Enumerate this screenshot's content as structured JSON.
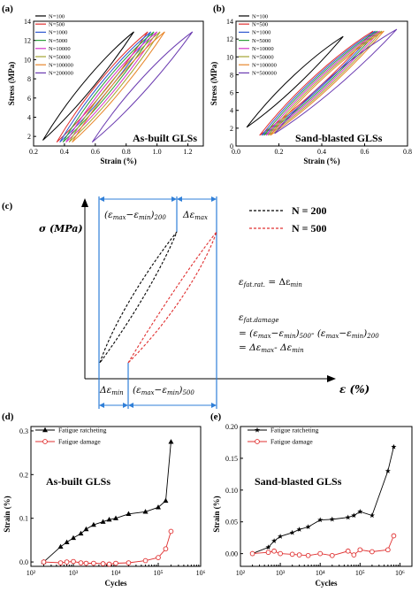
{
  "chart_data": [
    {
      "id": "a",
      "panel_label": "(a)",
      "type": "line",
      "annotation": "As-built GLSs",
      "xlabel": "Strain (%)",
      "ylabel": "Stress (MPa)",
      "xlim": [
        0.2,
        1.3
      ],
      "ylim": [
        1,
        14
      ],
      "xticks": [
        0.2,
        0.4,
        0.6,
        0.8,
        1.0,
        1.2
      ],
      "xtick_labels": [
        "0.2",
        "0.4",
        "0.6",
        "0.8",
        "1.0",
        "1.2"
      ],
      "yticks": [
        2,
        4,
        6,
        8,
        10,
        12,
        14
      ],
      "ytick_labels": [
        "2",
        "4",
        "6",
        "8",
        "10",
        "12",
        "14"
      ],
      "grid": false,
      "legend_position": "top-left",
      "series": [
        {
          "name": "N=100",
          "color": "#000000",
          "loop": {
            "x_start": 0.26,
            "x_end": 0.85,
            "y_min": 1.6,
            "y_max": 12.9
          }
        },
        {
          "name": "N=500",
          "color": "#e03030",
          "loop": {
            "x_start": 0.35,
            "x_end": 0.94,
            "y_min": 1.4,
            "y_max": 12.9
          }
        },
        {
          "name": "N=1000",
          "color": "#2f58d0",
          "loop": {
            "x_start": 0.37,
            "x_end": 0.96,
            "y_min": 1.4,
            "y_max": 12.9
          }
        },
        {
          "name": "N=5000",
          "color": "#2e9e3a",
          "loop": {
            "x_start": 0.39,
            "x_end": 0.98,
            "y_min": 1.4,
            "y_max": 12.9
          }
        },
        {
          "name": "N=10000",
          "color": "#d233c8",
          "loop": {
            "x_start": 0.41,
            "x_end": 1.0,
            "y_min": 1.4,
            "y_max": 12.9
          }
        },
        {
          "name": "N=50000",
          "color": "#a4a432",
          "loop": {
            "x_start": 0.43,
            "x_end": 1.02,
            "y_min": 1.4,
            "y_max": 12.9
          }
        },
        {
          "name": "N=100000",
          "color": "#e8862a",
          "loop": {
            "x_start": 0.45,
            "x_end": 1.05,
            "y_min": 1.4,
            "y_max": 12.9
          }
        },
        {
          "name": "N=200000",
          "color": "#6a3ab0",
          "loop": {
            "x_start": 0.58,
            "x_end": 1.23,
            "y_min": 1.4,
            "y_max": 12.9
          }
        }
      ]
    },
    {
      "id": "b",
      "panel_label": "(b)",
      "type": "line",
      "annotation": "Sand-blasted GLSs",
      "xlabel": "Strain (%)",
      "ylabel": "Stress (MPa)",
      "xlim": [
        0.0,
        0.8
      ],
      "ylim": [
        0,
        14
      ],
      "xticks": [
        0.0,
        0.2,
        0.4,
        0.6,
        0.8
      ],
      "xtick_labels": [
        "0.0",
        "0.2",
        "0.4",
        "0.6",
        "0.8"
      ],
      "yticks": [
        0,
        2,
        4,
        6,
        8,
        10,
        12,
        14
      ],
      "ytick_labels": [
        "0",
        "2",
        "4",
        "6",
        "8",
        "10",
        "12",
        "14"
      ],
      "grid": false,
      "legend_position": "top-left",
      "series": [
        {
          "name": "N=100",
          "color": "#000000",
          "loop": {
            "x_start": 0.05,
            "x_end": 0.5,
            "y_min": 2.1,
            "y_max": 12.3
          }
        },
        {
          "name": "N=500",
          "color": "#e03030",
          "loop": {
            "x_start": 0.11,
            "x_end": 0.64,
            "y_min": 1.2,
            "y_max": 12.9
          }
        },
        {
          "name": "N=1000",
          "color": "#2f58d0",
          "loop": {
            "x_start": 0.12,
            "x_end": 0.65,
            "y_min": 1.2,
            "y_max": 12.9
          }
        },
        {
          "name": "N=5000",
          "color": "#2e9e3a",
          "loop": {
            "x_start": 0.13,
            "x_end": 0.66,
            "y_min": 1.2,
            "y_max": 12.9
          }
        },
        {
          "name": "N=10000",
          "color": "#d233c8",
          "loop": {
            "x_start": 0.14,
            "x_end": 0.67,
            "y_min": 1.2,
            "y_max": 12.9
          }
        },
        {
          "name": "N=50000",
          "color": "#a4a432",
          "loop": {
            "x_start": 0.15,
            "x_end": 0.68,
            "y_min": 1.2,
            "y_max": 12.9
          }
        },
        {
          "name": "N=100000",
          "color": "#e8862a",
          "loop": {
            "x_start": 0.16,
            "x_end": 0.69,
            "y_min": 1.2,
            "y_max": 12.9
          }
        },
        {
          "name": "N=500000",
          "color": "#6a3ab0",
          "loop": {
            "x_start": 0.18,
            "x_end": 0.75,
            "y_min": 1.4,
            "y_max": 13.1
          }
        }
      ]
    },
    {
      "id": "c",
      "panel_label": "(c)",
      "type": "line",
      "ylabel": "σ (MPa)",
      "xlabel": "ε (%)",
      "series": [
        {
          "name": "N = 200",
          "color": "#000000",
          "style": "dashed"
        },
        {
          "name": "N = 500",
          "color": "#e03030",
          "style": "dashed"
        }
      ],
      "annotations": {
        "top_left": "(εmax−εmin)200",
        "top_right": "Δεmax",
        "bottom_left": "Δεmin",
        "bottom_right": "(εmax−εmin)500",
        "eq1": "εfat.rat. = Δεmin",
        "eq2_title": "εfat.damage",
        "eq2_line1": "= (εmax−εmin)500 - (εmax−εmin)200",
        "eq2_line2": "= Δεmax - Δεmin"
      }
    },
    {
      "id": "d",
      "panel_label": "(d)",
      "type": "line",
      "annotation": "As-built GLSs",
      "xlabel": "Cycles",
      "ylabel": "Strain (%)",
      "xscale": "log",
      "xlim": [
        100,
        1000000
      ],
      "ylim": [
        -0.01,
        0.31
      ],
      "xticks": [
        100,
        1000,
        10000,
        100000,
        1000000
      ],
      "xtick_labels": [
        "10²",
        "10³",
        "10⁴",
        "10⁵",
        "10⁶"
      ],
      "yticks": [
        0.0,
        0.1,
        0.2,
        0.3
      ],
      "ytick_labels": [
        "0.0",
        "0.1",
        "0.2",
        "0.3"
      ],
      "legend_position": "top-left",
      "series": [
        {
          "name": "Fatigue ratcheting",
          "color": "#000000",
          "marker": "triangle",
          "x": [
            200,
            500,
            700,
            1000,
            1500,
            2000,
            3000,
            5000,
            7000,
            10000,
            20000,
            50000,
            100000,
            150000,
            200000
          ],
          "y": [
            0.0,
            0.035,
            0.045,
            0.055,
            0.065,
            0.075,
            0.085,
            0.092,
            0.097,
            0.1,
            0.11,
            0.115,
            0.125,
            0.14,
            0.275
          ]
        },
        {
          "name": "Fatigue damage",
          "color": "#e03030",
          "marker": "circle",
          "x": [
            200,
            500,
            700,
            1000,
            1500,
            2000,
            3000,
            5000,
            7000,
            10000,
            20000,
            50000,
            100000,
            150000,
            200000
          ],
          "y": [
            0.0,
            -0.002,
            0.0,
            0.001,
            -0.002,
            -0.003,
            -0.003,
            -0.004,
            -0.005,
            -0.003,
            -0.002,
            0.003,
            0.01,
            0.03,
            0.07
          ]
        }
      ]
    },
    {
      "id": "e",
      "panel_label": "(e)",
      "type": "line",
      "annotation": "Sand-blasted GLSs",
      "xlabel": "Cycles",
      "ylabel": "Strain (%)",
      "xscale": "log",
      "xlim": [
        100,
        2000000
      ],
      "ylim": [
        -0.02,
        0.2
      ],
      "xticks": [
        100,
        1000,
        10000,
        100000,
        1000000
      ],
      "xtick_labels": [
        "10²",
        "10³",
        "10⁴",
        "10⁵",
        "10⁶"
      ],
      "yticks": [
        0.0,
        0.05,
        0.1,
        0.15,
        0.2
      ],
      "ytick_labels": [
        "0.00",
        "0.05",
        "0.10",
        "0.15",
        "0.20"
      ],
      "legend_position": "top-left",
      "series": [
        {
          "name": "Fatigue ratcheting",
          "color": "#000000",
          "marker": "star",
          "x": [
            200,
            500,
            700,
            1000,
            2000,
            3000,
            5000,
            10000,
            20000,
            50000,
            70000,
            100000,
            200000,
            500000,
            700000
          ],
          "y": [
            0.0,
            0.01,
            0.02,
            0.027,
            0.033,
            0.038,
            0.042,
            0.053,
            0.054,
            0.057,
            0.06,
            0.066,
            0.06,
            0.13,
            0.168
          ]
        },
        {
          "name": "Fatigue damage",
          "color": "#e03030",
          "marker": "circle",
          "x": [
            200,
            500,
            700,
            1000,
            2000,
            3000,
            5000,
            10000,
            20000,
            50000,
            70000,
            100000,
            200000,
            500000,
            700000
          ],
          "y": [
            0.0,
            0.002,
            0.004,
            0.0,
            -0.001,
            -0.002,
            -0.003,
            0.0,
            -0.003,
            0.004,
            -0.002,
            0.006,
            0.003,
            0.006,
            0.028
          ]
        }
      ]
    }
  ]
}
